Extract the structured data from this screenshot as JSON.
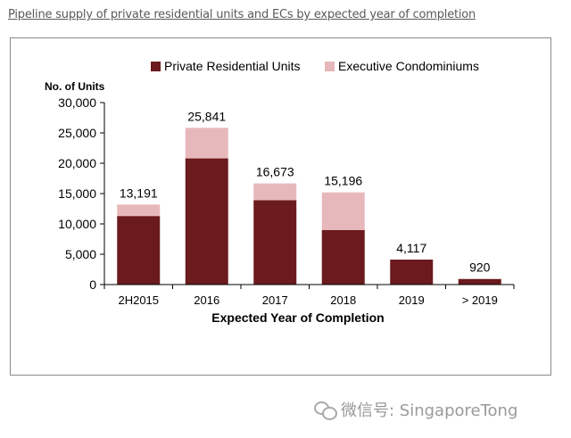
{
  "page": {
    "title": "Pipeline supply of private residential units and ECs by expected year of completion",
    "watermark": "微信号: SingaporeTong"
  },
  "colors": {
    "private": "#6b1a1d",
    "ec": "#e7b8bb",
    "axis": "#000000",
    "frame": "#8a8a8a"
  },
  "chart_data": {
    "type": "bar",
    "stacked": true,
    "categories": [
      "2H2015",
      "2016",
      "2017",
      "2018",
      "2019",
      "> 2019"
    ],
    "series": [
      {
        "name": "Private Residential Units",
        "values": [
          11300,
          20800,
          13900,
          9000,
          4117,
          920
        ]
      },
      {
        "name": "Executive Condominiums",
        "values": [
          1891,
          5041,
          2773,
          6196,
          0,
          0
        ]
      }
    ],
    "totals": [
      "13,191",
      "25,841",
      "16,673",
      "15,196",
      "4,117",
      "920"
    ],
    "xlabel": "Expected Year of Completion",
    "ylabel": "No. of Units",
    "ylim": [
      0,
      30000
    ],
    "yticks": [
      0,
      5000,
      10000,
      15000,
      20000,
      25000,
      30000
    ],
    "ytick_labels": [
      "0",
      "5,000",
      "10,000",
      "15,000",
      "20,000",
      "25,000",
      "30,000"
    ],
    "legend_position": "top",
    "grid": false
  }
}
